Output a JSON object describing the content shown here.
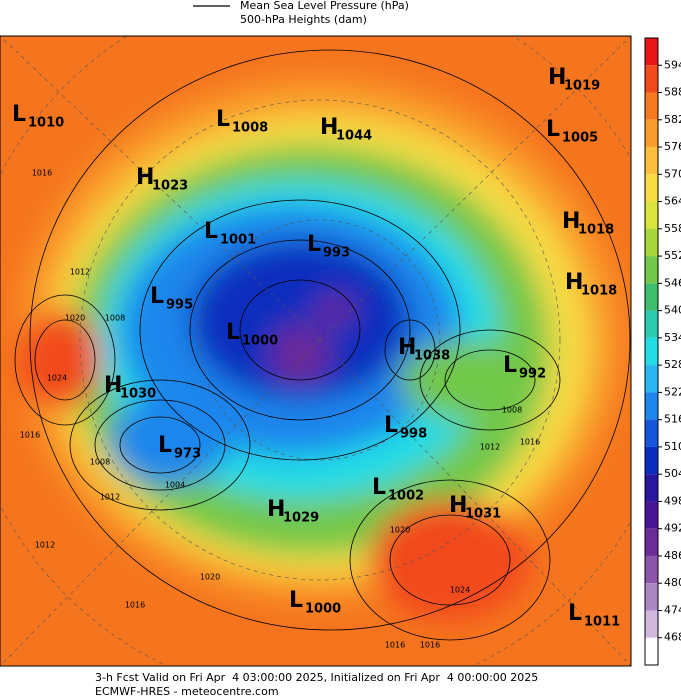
{
  "legend": {
    "line_label": "Mean Sea Level Pressure (hPa)",
    "fill_label": "500-hPa Heights (dam)"
  },
  "pressure_centers": [
    {
      "symbol": "H",
      "value": 1019
    },
    {
      "symbol": "L",
      "value": 1010
    },
    {
      "symbol": "L",
      "value": 1008
    },
    {
      "symbol": "H",
      "value": 1044
    },
    {
      "symbol": "L",
      "value": 1005
    },
    {
      "symbol": "H",
      "value": 1023
    },
    {
      "symbol": "L",
      "value": 1001
    },
    {
      "symbol": "H",
      "value": 1018
    },
    {
      "symbol": "L",
      "value": 993
    },
    {
      "symbol": "H",
      "value": 1018
    },
    {
      "symbol": "L",
      "value": 995
    },
    {
      "symbol": "L",
      "value": 1000
    },
    {
      "symbol": "H",
      "value": 1038
    },
    {
      "symbol": "L",
      "value": 992
    },
    {
      "symbol": "H",
      "value": 1030
    },
    {
      "symbol": "L",
      "value": 998
    },
    {
      "symbol": "L",
      "value": 973
    },
    {
      "symbol": "L",
      "value": 1002
    },
    {
      "symbol": "H",
      "value": 1031
    },
    {
      "symbol": "H",
      "value": 1029
    },
    {
      "symbol": "L",
      "value": 1000
    },
    {
      "symbol": "L",
      "value": 1011
    }
  ],
  "contour_labels": [
    1016,
    1012,
    1008,
    1020,
    1024,
    1016,
    1008,
    1004,
    1012,
    1012,
    1020,
    1016,
    1008,
    1012,
    1016,
    1020,
    1024,
    1016,
    1016
  ],
  "colorbar": {
    "ticks": [
      594,
      588,
      582,
      576,
      570,
      564,
      558,
      552,
      546,
      540,
      534,
      528,
      522,
      516,
      510,
      504,
      498,
      492,
      486,
      480,
      474,
      468
    ],
    "colors": [
      "#e8151b",
      "#f24a1c",
      "#f57a20",
      "#f99e2c",
      "#fbbf3c",
      "#f7dc44",
      "#d9e43e",
      "#a8d63c",
      "#72c84a",
      "#3fbf6e",
      "#2dcab2",
      "#22dce6",
      "#2ab6f2",
      "#1d86ec",
      "#1556dc",
      "#0a2fbe",
      "#28179e",
      "#4a1496",
      "#6c2c98",
      "#8c56aa",
      "#ac86c2",
      "#d0b8dc",
      "#ffffff"
    ]
  },
  "footer": {
    "line1": "3-h Fcst Valid on Fri Apr  4 03:00:00 2025, Initialized on Fri Apr  4 00:00:00 2025",
    "line2": "ECMWF-HRES - meteocentre.com"
  }
}
